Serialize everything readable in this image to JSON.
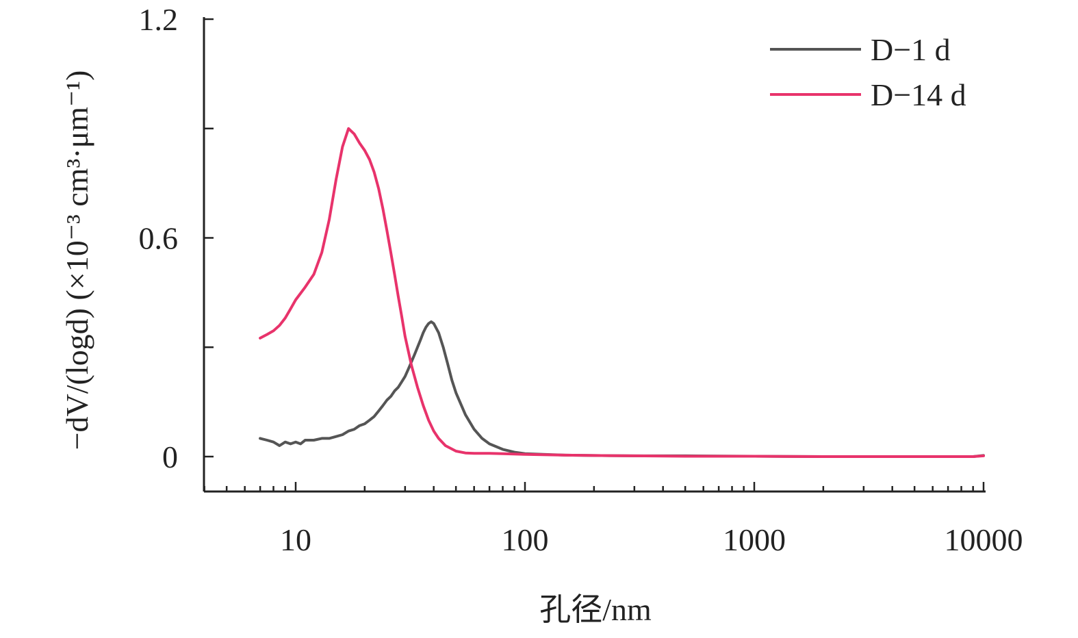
{
  "chart_data": {
    "type": "line",
    "xscale": "log",
    "xlim": [
      4,
      10000
    ],
    "ylim": [
      -0.1,
      1.2
    ],
    "xticks": [
      "10",
      "100",
      "1000",
      "10000"
    ],
    "yticks": [
      "0",
      "0.6",
      "1.2"
    ],
    "xlabel": "孔径/nm",
    "ylabel": "−dV/(logd) (×10⁻³ cm³·μm⁻¹)",
    "grid": false,
    "legend_position": "top-right",
    "series": [
      {
        "name": "D−1 d",
        "color": "#555555",
        "x": [
          7,
          7.5,
          8,
          8.5,
          9,
          9.5,
          10,
          10.5,
          11,
          12,
          13,
          14,
          15,
          16,
          17,
          18,
          19,
          20,
          21,
          22,
          23,
          24,
          25,
          26,
          27,
          28,
          29,
          30,
          31,
          32,
          33,
          34,
          35,
          36,
          37,
          38,
          39,
          40,
          42,
          44,
          46,
          48,
          50,
          55,
          60,
          65,
          70,
          80,
          90,
          100,
          120,
          150,
          200,
          300,
          500,
          1000,
          2000,
          5000,
          9000,
          10000
        ],
        "y": [
          0.05,
          0.045,
          0.04,
          0.03,
          0.04,
          0.035,
          0.04,
          0.035,
          0.045,
          0.045,
          0.05,
          0.05,
          0.055,
          0.06,
          0.07,
          0.075,
          0.085,
          0.09,
          0.1,
          0.11,
          0.125,
          0.14,
          0.155,
          0.165,
          0.18,
          0.19,
          0.205,
          0.22,
          0.24,
          0.26,
          0.28,
          0.3,
          0.32,
          0.34,
          0.355,
          0.365,
          0.37,
          0.365,
          0.34,
          0.3,
          0.255,
          0.21,
          0.175,
          0.115,
          0.075,
          0.05,
          0.035,
          0.02,
          0.012,
          0.008,
          0.006,
          0.004,
          0.003,
          0.002,
          0.002,
          0.001,
          0.0,
          0.0,
          0.0,
          0.003
        ]
      },
      {
        "name": "D−14 d",
        "color": "#e8336b",
        "x": [
          7,
          7.5,
          8,
          8.5,
          9,
          9.5,
          10,
          11,
          12,
          13,
          14,
          15,
          16,
          17,
          18,
          19,
          20,
          21,
          22,
          23,
          24,
          25,
          26,
          27,
          28,
          29,
          30,
          32,
          34,
          36,
          38,
          40,
          42,
          45,
          50,
          55,
          60,
          70,
          80,
          100,
          150,
          200,
          300,
          500,
          1000,
          2000,
          5000,
          9000,
          10000
        ],
        "y": [
          0.325,
          0.335,
          0.345,
          0.36,
          0.38,
          0.405,
          0.43,
          0.465,
          0.5,
          0.56,
          0.65,
          0.76,
          0.85,
          0.9,
          0.885,
          0.86,
          0.84,
          0.815,
          0.78,
          0.735,
          0.68,
          0.62,
          0.56,
          0.5,
          0.44,
          0.385,
          0.33,
          0.25,
          0.19,
          0.14,
          0.1,
          0.07,
          0.05,
          0.03,
          0.015,
          0.01,
          0.009,
          0.009,
          0.008,
          0.006,
          0.004,
          0.003,
          0.002,
          0.001,
          0.001,
          0.0,
          0.0,
          0.0,
          0.002
        ]
      }
    ]
  }
}
